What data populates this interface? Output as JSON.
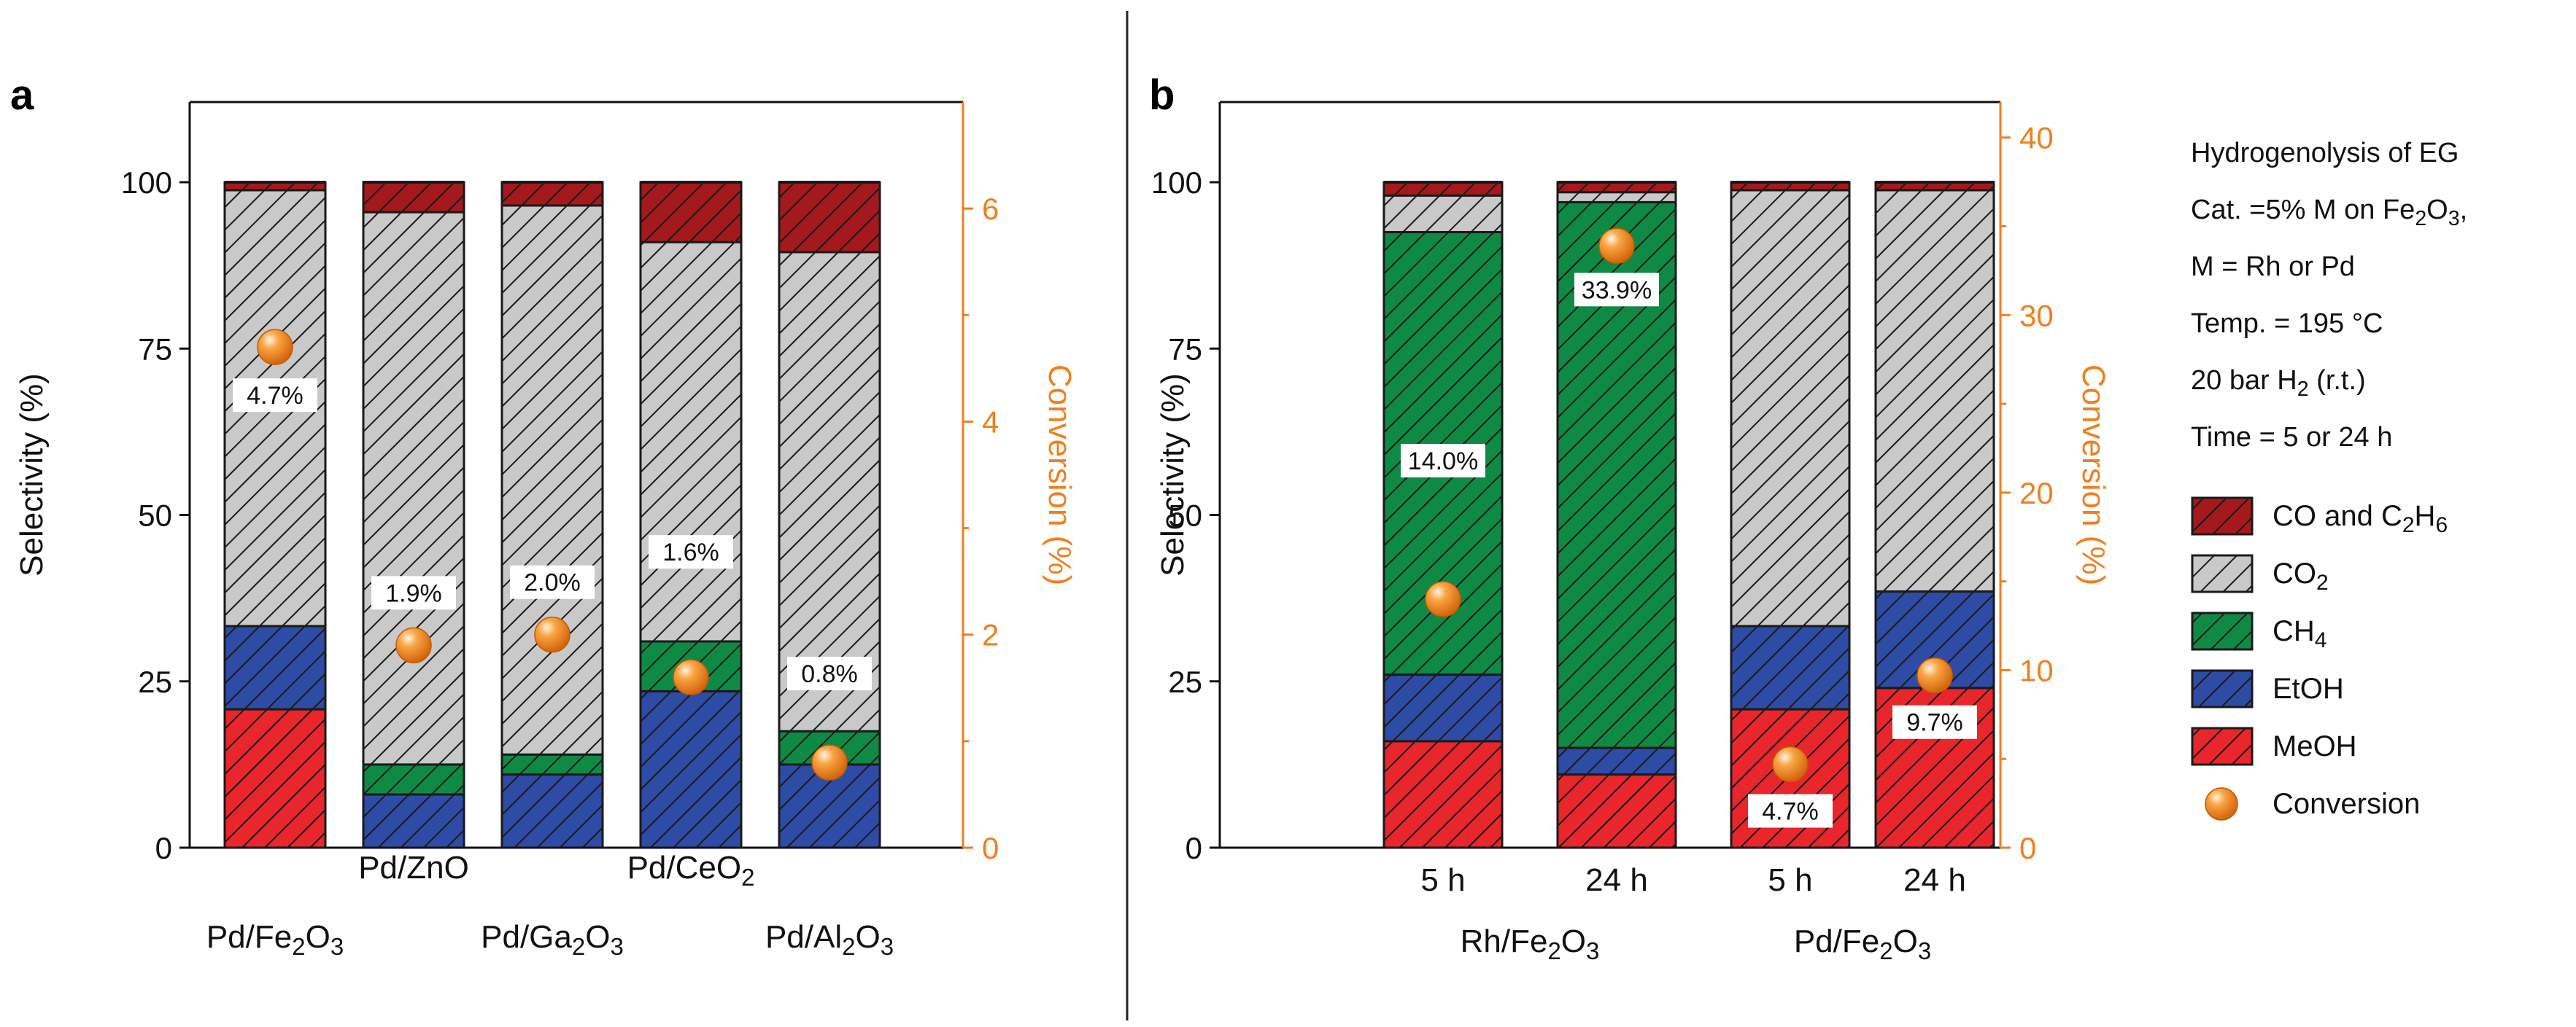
{
  "chart_data": [
    {
      "type": "bar",
      "panel": "a",
      "subtype": "stacked-bar-with-scatter",
      "categories": [
        "Pd/Fe2O3",
        "Pd/ZnO",
        "Pd/Ga2O3",
        "Pd/CeO2",
        "Pd/Al2O3"
      ],
      "category_labels": [
        {
          "base": "Pd/Fe",
          "sub1": "2",
          "mid": "O",
          "sub2": "3"
        },
        {
          "base": "Pd/ZnO",
          "sub1": "",
          "mid": "",
          "sub2": ""
        },
        {
          "base": "Pd/Ga",
          "sub1": "2",
          "mid": "O",
          "sub2": "3"
        },
        {
          "base": "Pd/CeO",
          "sub1": "2",
          "mid": "",
          "sub2": ""
        },
        {
          "base": "Pd/Al",
          "sub1": "2",
          "mid": "O",
          "sub2": "3"
        }
      ],
      "ylabel": "Selectivity (%)",
      "y2label": "Conversion (%)",
      "ylim": [
        0,
        112
      ],
      "yticks": [
        0,
        25,
        50,
        75,
        100
      ],
      "y2lim": [
        0,
        7
      ],
      "y2ticks": [
        0,
        2,
        4,
        6
      ],
      "series": [
        {
          "name": "MeOH",
          "values": [
            20.8,
            0,
            0,
            0,
            0
          ]
        },
        {
          "name": "EtOH",
          "values": [
            12.5,
            8,
            11,
            23.5,
            12.5
          ]
        },
        {
          "name": "CH4",
          "values": [
            0,
            4.5,
            3,
            7.5,
            5
          ]
        },
        {
          "name": "CO2",
          "values": [
            65.5,
            83,
            82.5,
            60,
            72
          ]
        },
        {
          "name": "CO and C2H6",
          "values": [
            1.2,
            4.5,
            3.5,
            9,
            10.5
          ]
        }
      ],
      "conversion": {
        "values": [
          4.7,
          1.9,
          2.0,
          1.6,
          0.8
        ],
        "labels": [
          "4.7%",
          "1.9%",
          "2.0%",
          "1.6%",
          "0.8%"
        ]
      }
    },
    {
      "type": "bar",
      "panel": "b",
      "subtype": "stacked-bar-with-scatter",
      "categories": [
        "5 h",
        "24 h",
        "5 h",
        "24 h"
      ],
      "groups": [
        {
          "label": {
            "base": "Rh/Fe",
            "sub1": "2",
            "mid": "O",
            "sub2": "3"
          }
        },
        {
          "label": {
            "base": "Pd/Fe",
            "sub1": "2",
            "mid": "O",
            "sub2": "3"
          }
        }
      ],
      "ylabel": "Selectivity (%)",
      "y2label": "Conversion (%)",
      "ylim": [
        0,
        112
      ],
      "yticks": [
        0,
        25,
        50,
        75,
        100
      ],
      "y2lim": [
        0,
        42
      ],
      "y2ticks": [
        0,
        10,
        20,
        30,
        40
      ],
      "series": [
        {
          "name": "MeOH",
          "values": [
            16,
            11,
            20.8,
            24
          ]
        },
        {
          "name": "EtOH",
          "values": [
            10,
            4,
            12.5,
            14.5
          ]
        },
        {
          "name": "CH4",
          "values": [
            66.5,
            82,
            0,
            0
          ]
        },
        {
          "name": "CO2",
          "values": [
            5.5,
            1.5,
            65.5,
            60.3
          ]
        },
        {
          "name": "CO and C2H6",
          "values": [
            2,
            1.5,
            1.2,
            1.2
          ]
        }
      ],
      "conversion": {
        "values": [
          14.0,
          33.9,
          4.7,
          9.7
        ],
        "labels": [
          "14.0%",
          "33.9%",
          "4.7%",
          "9.7%"
        ]
      }
    }
  ],
  "panel_labels": [
    "a",
    "b"
  ],
  "info_lines": [
    {
      "base": "Hydrogenolysis of EG",
      "sub": "",
      "after": ""
    },
    {
      "base": "Cat. =5% M on Fe",
      "sub": "2",
      "after": "O",
      "sub2": "3",
      "tail": ","
    },
    {
      "base": "M = Rh or Pd",
      "sub": "",
      "after": ""
    },
    {
      "base": "Temp. = 195 °C",
      "sub": "",
      "after": ""
    },
    {
      "base": "20 bar H",
      "sub": "2",
      "after": " (r.t.)"
    },
    {
      "base": "Time = 5 or 24 h",
      "sub": "",
      "after": ""
    }
  ],
  "legend": [
    {
      "key": "CO and C2H6",
      "base": "CO and C",
      "sub1": "2",
      "mid": "H",
      "sub2": "6"
    },
    {
      "key": "CO2",
      "base": "CO",
      "sub1": "2",
      "mid": "",
      "sub2": ""
    },
    {
      "key": "CH4",
      "base": "CH",
      "sub1": "4",
      "mid": "",
      "sub2": ""
    },
    {
      "key": "EtOH",
      "base": "EtOH",
      "sub1": "",
      "mid": "",
      "sub2": ""
    },
    {
      "key": "MeOH",
      "base": "MeOH",
      "sub1": "",
      "mid": "",
      "sub2": ""
    },
    {
      "key": "Conversion",
      "base": "Conversion",
      "sub1": "",
      "mid": "",
      "sub2": ""
    }
  ],
  "colors": {
    "MeOH": "#E8262B",
    "EtOH": "#2E4CA6",
    "CH4": "#0E8A45",
    "CO2": "#C9C9C9",
    "CO and C2H6": "#A3191D",
    "conversion": "#F28A1A",
    "axis2": "#F07F1E"
  }
}
